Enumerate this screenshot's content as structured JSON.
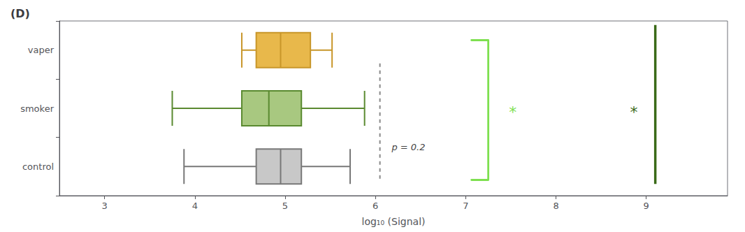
{
  "chart_data": {
    "type": "boxplot",
    "title": "(D)",
    "orientation": "horizontal",
    "x_label": "log₁₀ (Signal)",
    "categories": [
      "vaper",
      "smoker",
      "control"
    ],
    "boxes": [
      {
        "whisker_lo": 4.52,
        "q1": 4.68,
        "median": 4.95,
        "q3": 5.28,
        "whisker_hi": 5.52,
        "color": "#E8B84B",
        "edge_color": "#C8962A"
      },
      {
        "whisker_lo": 3.75,
        "q1": 4.52,
        "median": 4.82,
        "q3": 5.18,
        "whisker_hi": 5.88,
        "color": "#A8C880",
        "edge_color": "#5A8A30"
      },
      {
        "whisker_lo": 3.88,
        "q1": 4.68,
        "median": 4.95,
        "q3": 5.18,
        "whisker_hi": 5.72,
        "color": "#C8C8C8",
        "edge_color": "#787878"
      }
    ],
    "xlim": [
      2.5,
      9.9
    ],
    "xticks": [
      3,
      4,
      5,
      6,
      7,
      8,
      9
    ],
    "grid": false,
    "lines": [
      {
        "x": 6.05,
        "from": "vaper",
        "to": "control",
        "line_style": "dashed",
        "color": "#888888"
      },
      {
        "x": 7.25,
        "from": "vaper",
        "to": "control",
        "line_style": "bracket",
        "color": "#7EE050"
      },
      {
        "x": 9.1,
        "from": "vaper",
        "to": "control",
        "line_style": "solid",
        "color": "#3A6A18"
      }
    ],
    "annotations": [
      {
        "text": "p = 0.2",
        "x": 6.18,
        "category": [
          "smoker",
          "control"
        ],
        "color": "#444444"
      },
      {
        "text": "*",
        "x": 7.48,
        "category": "smoker",
        "color": "#7EE050"
      },
      {
        "text": "*",
        "x": 8.82,
        "category": "smoker",
        "color": "#3A6A18"
      }
    ]
  }
}
